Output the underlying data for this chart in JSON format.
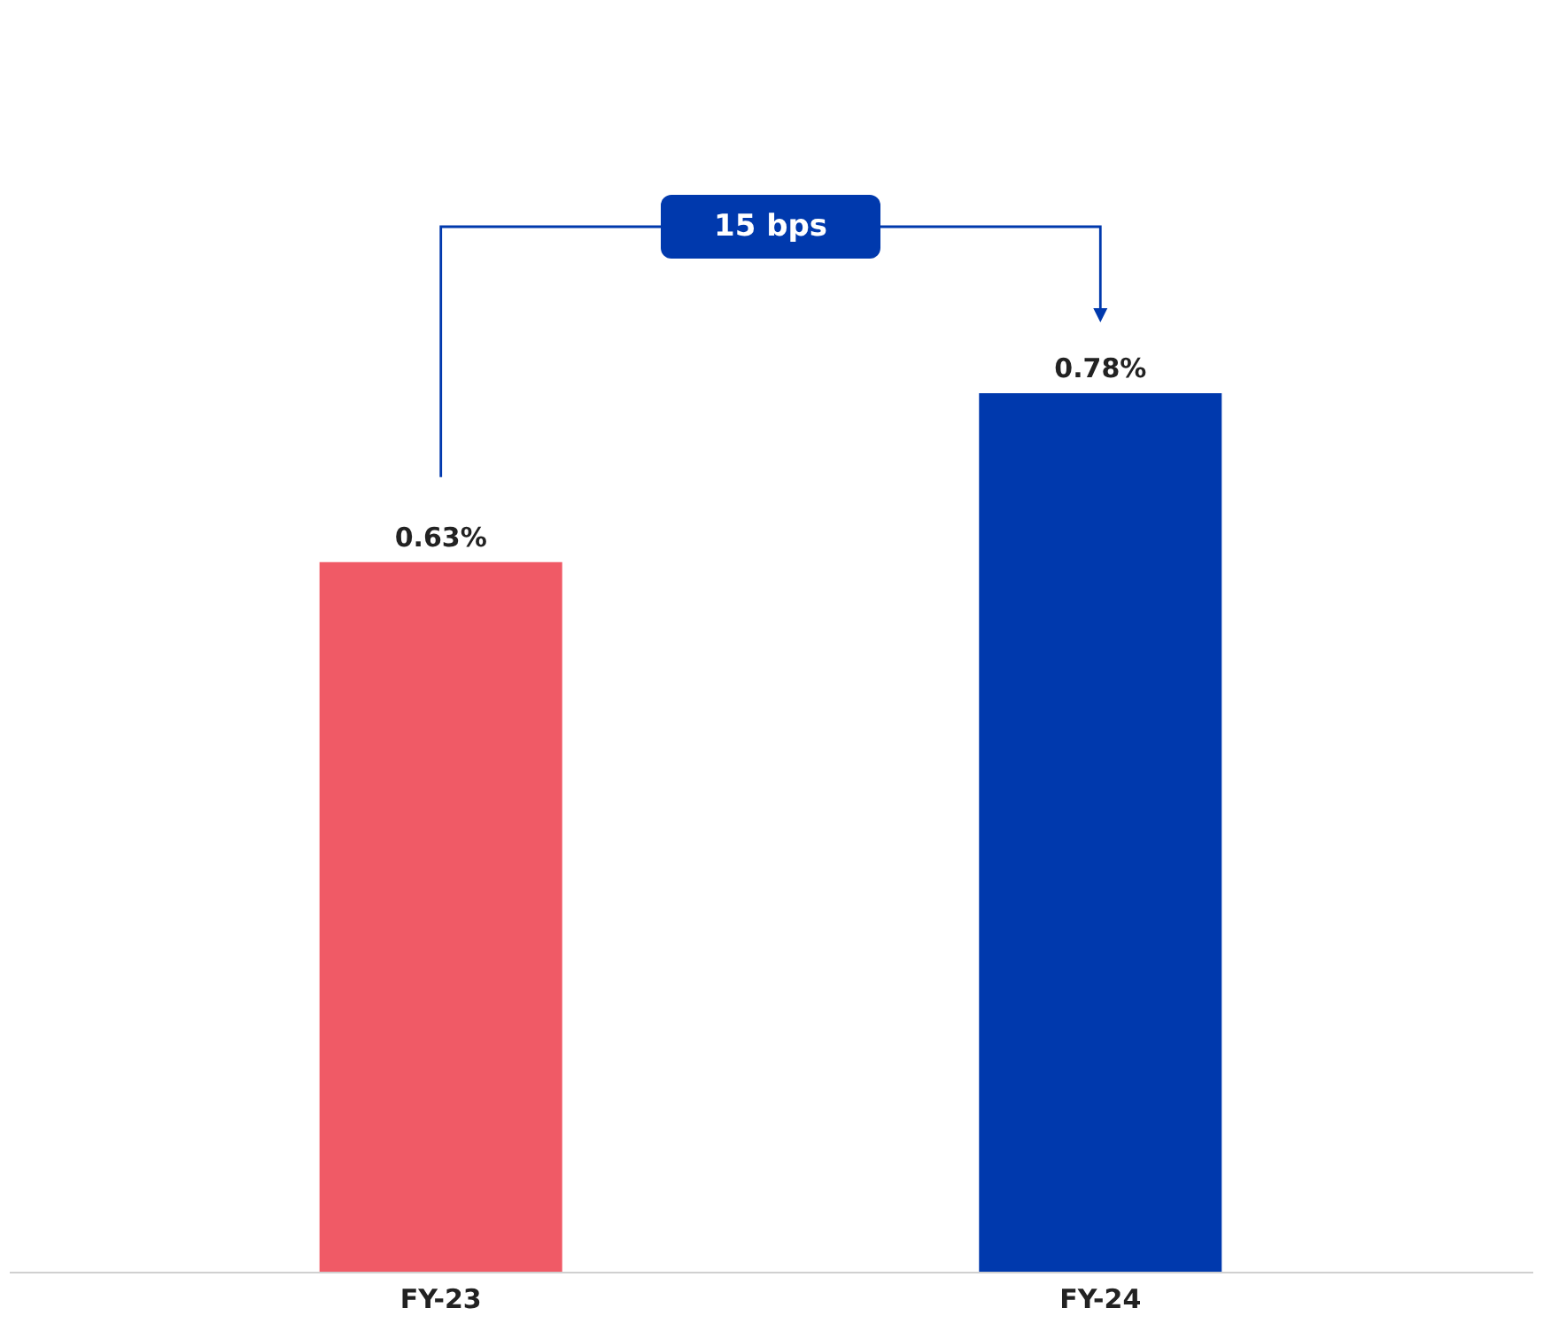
{
  "chart_data": {
    "type": "bar",
    "categories": [
      "FY-23",
      "FY-24"
    ],
    "values": [
      0.63,
      0.78
    ],
    "colors": [
      "#f05a66",
      "#0039ad"
    ],
    "value_labels": [
      "0.63%",
      "0.78%"
    ],
    "annotations": [
      "15 bps"
    ]
  }
}
